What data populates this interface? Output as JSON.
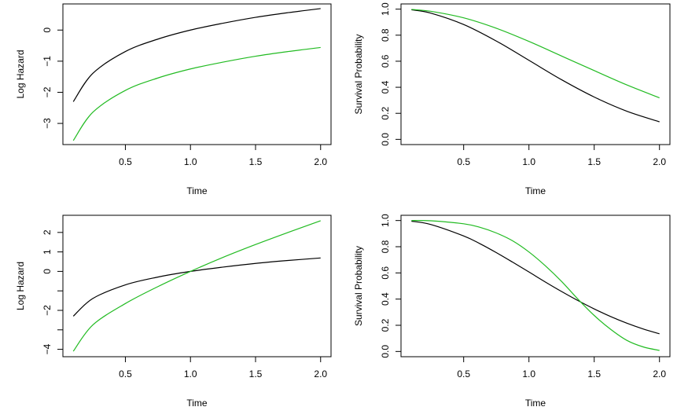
{
  "colors": {
    "series_black": "#000000",
    "series_green": "#22bb22"
  },
  "chart_data": [
    {
      "type": "line",
      "panel": "top-left",
      "title": "",
      "xlabel": "Time",
      "ylabel": "Log Hazard",
      "xlim": [
        0.02,
        2.08
      ],
      "ylim": [
        -3.68,
        0.84
      ],
      "xticks": [
        0.5,
        1.0,
        1.5,
        2.0
      ],
      "xtick_labels": [
        "0.5",
        "1.0",
        "1.5",
        "2.0"
      ],
      "yticks": [
        -3,
        -2,
        -1,
        0
      ],
      "ytick_labels": [
        "−3",
        "−2",
        "−1",
        "0"
      ],
      "grid": false,
      "x": [
        0.1,
        0.25,
        0.5,
        0.75,
        1.0,
        1.25,
        1.5,
        1.75,
        2.0
      ],
      "series": [
        {
          "name": "black",
          "color": "#000000",
          "values": [
            -2.3,
            -1.39,
            -0.69,
            -0.29,
            0.0,
            0.22,
            0.41,
            0.56,
            0.69
          ]
        },
        {
          "name": "green",
          "color": "#22bb22",
          "values": [
            -3.55,
            -2.64,
            -1.94,
            -1.54,
            -1.25,
            -1.03,
            -0.84,
            -0.69,
            -0.56
          ]
        }
      ]
    },
    {
      "type": "line",
      "panel": "top-right",
      "title": "",
      "xlabel": "Time",
      "ylabel": "Survival Probability",
      "xlim": [
        0.02,
        2.08
      ],
      "ylim": [
        -0.04,
        1.04
      ],
      "xticks": [
        0.5,
        1.0,
        1.5,
        2.0
      ],
      "xtick_labels": [
        "0.5",
        "1.0",
        "1.5",
        "2.0"
      ],
      "yticks": [
        0.0,
        0.2,
        0.4,
        0.6,
        0.8,
        1.0
      ],
      "ytick_labels": [
        "0.0",
        "0.2",
        "0.4",
        "0.6",
        "0.8",
        "1.0"
      ],
      "grid": false,
      "x": [
        0.1,
        0.25,
        0.5,
        0.75,
        1.0,
        1.25,
        1.5,
        1.75,
        2.0
      ],
      "series": [
        {
          "name": "black",
          "color": "#000000",
          "values": [
            0.995,
            0.969,
            0.882,
            0.755,
            0.607,
            0.458,
            0.325,
            0.216,
            0.135
          ]
        },
        {
          "name": "green",
          "color": "#22bb22",
          "values": [
            0.998,
            0.983,
            0.933,
            0.853,
            0.752,
            0.64,
            0.528,
            0.418,
            0.319
          ]
        }
      ]
    },
    {
      "type": "line",
      "panel": "bottom-left",
      "title": "",
      "xlabel": "Time",
      "ylabel": "Log Hazard",
      "xlim": [
        0.02,
        2.08
      ],
      "ylim": [
        -4.38,
        2.88
      ],
      "xticks": [
        0.5,
        1.0,
        1.5,
        2.0
      ],
      "xtick_labels": [
        "0.5",
        "1.0",
        "1.5",
        "2.0"
      ],
      "yticks": [
        -4,
        -3,
        -2,
        -1,
        0,
        1,
        2
      ],
      "ytick_labels": [
        "−4",
        "",
        "−2",
        "",
        "0",
        "1",
        "2"
      ],
      "grid": false,
      "x": [
        0.1,
        0.25,
        0.5,
        0.75,
        1.0,
        1.25,
        1.5,
        1.75,
        2.0
      ],
      "series": [
        {
          "name": "black",
          "color": "#000000",
          "values": [
            -2.3,
            -1.39,
            -0.69,
            -0.29,
            0.0,
            0.22,
            0.41,
            0.56,
            0.69
          ]
        },
        {
          "name": "green",
          "color": "#22bb22",
          "values": [
            -4.1,
            -2.75,
            -1.65,
            -0.78,
            0.0,
            0.72,
            1.38,
            2.0,
            2.6
          ]
        }
      ]
    },
    {
      "type": "line",
      "panel": "bottom-right",
      "title": "",
      "xlabel": "Time",
      "ylabel": "Survival Probability",
      "xlim": [
        0.02,
        2.08
      ],
      "ylim": [
        -0.04,
        1.04
      ],
      "xticks": [
        0.5,
        1.0,
        1.5,
        2.0
      ],
      "xtick_labels": [
        "0.5",
        "1.0",
        "1.5",
        "2.0"
      ],
      "yticks": [
        0.0,
        0.2,
        0.4,
        0.6,
        0.8,
        1.0
      ],
      "ytick_labels": [
        "0.0",
        "0.2",
        "0.4",
        "0.6",
        "0.8",
        "1.0"
      ],
      "grid": false,
      "x": [
        0.1,
        0.25,
        0.5,
        0.625,
        0.75,
        0.875,
        1.0,
        1.125,
        1.25,
        1.375,
        1.5,
        1.625,
        1.75,
        1.875,
        2.0
      ],
      "series": [
        {
          "name": "black",
          "color": "#000000",
          "values": [
            0.995,
            0.969,
            0.882,
            0.823,
            0.755,
            0.682,
            0.607,
            0.531,
            0.458,
            0.389,
            0.325,
            0.267,
            0.216,
            0.172,
            0.135
          ]
        },
        {
          "name": "green",
          "color": "#22bb22",
          "values": [
            1.0,
            0.998,
            0.975,
            0.948,
            0.905,
            0.845,
            0.76,
            0.655,
            0.535,
            0.4,
            0.275,
            0.17,
            0.085,
            0.035,
            0.008
          ]
        }
      ]
    }
  ]
}
